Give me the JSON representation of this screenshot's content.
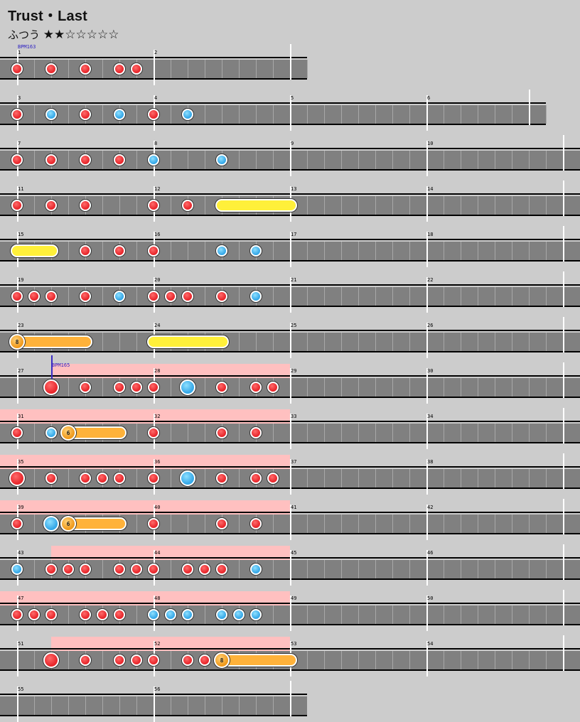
{
  "song": {
    "title": "Trust・Last",
    "difficulty_label": "ふつう",
    "stars_filled": 2,
    "stars_total": 7,
    "star_filled_glyph": "★",
    "star_empty_glyph": "☆"
  },
  "colors": {
    "background": "#cccccc",
    "lane": "#808080",
    "gogo_highlight": "#ffc0c0",
    "don": "#e8272c",
    "ka": "#36a8e8",
    "roll": "#fff03a",
    "balloon": "#ffb23a",
    "bpm_marker": "#2b1ec2"
  },
  "bpm_changes": [
    {
      "measure": 1,
      "beat": 0,
      "label": "BPM163"
    },
    {
      "measure": 27,
      "beat": 2,
      "label": "BPM165"
    }
  ],
  "rows": [
    {
      "measures": [
        1,
        2
      ],
      "gogo": []
    },
    {
      "measures": [
        3,
        4,
        5,
        6
      ],
      "gogo": []
    },
    {
      "measures": [
        7,
        8,
        9,
        10
      ],
      "gogo": []
    },
    {
      "measures": [
        11,
        12,
        13,
        14
      ],
      "gogo": []
    },
    {
      "measures": [
        15,
        16,
        17,
        18
      ],
      "gogo": []
    },
    {
      "measures": [
        19,
        20,
        21,
        22
      ],
      "gogo": []
    },
    {
      "measures": [
        23,
        24,
        25,
        26
      ],
      "gogo": []
    },
    {
      "measures": [
        27,
        28,
        29,
        30
      ],
      "gogo": [
        [
          2,
          16
        ]
      ]
    },
    {
      "measures": [
        31,
        32,
        33,
        34
      ],
      "gogo": [
        [
          0,
          16
        ]
      ]
    },
    {
      "measures": [
        35,
        36,
        37,
        38
      ],
      "gogo": [
        [
          0,
          16
        ]
      ]
    },
    {
      "measures": [
        39,
        40,
        41,
        42
      ],
      "gogo": [
        [
          0,
          16
        ]
      ]
    },
    {
      "measures": [
        43,
        44,
        45,
        46
      ],
      "gogo": [
        [
          2,
          16
        ]
      ]
    },
    {
      "measures": [
        47,
        48,
        49,
        50
      ],
      "gogo": [
        [
          0,
          16
        ]
      ]
    },
    {
      "measures": [
        51,
        52,
        53,
        54
      ],
      "gogo": [
        [
          2,
          16
        ]
      ]
    },
    {
      "measures": [
        55,
        56
      ],
      "gogo": []
    }
  ],
  "notes": [
    {
      "row": 0,
      "notes": [
        [
          "d",
          0
        ],
        [
          "d",
          2
        ],
        [
          "d",
          4
        ],
        [
          "d",
          6
        ],
        [
          "d",
          7
        ]
      ]
    },
    {
      "row": 1,
      "notes": [
        [
          "d",
          0
        ],
        [
          "k",
          2
        ],
        [
          "d",
          4
        ],
        [
          "k",
          6
        ],
        [
          "d",
          8
        ],
        [
          "k",
          10
        ]
      ]
    },
    {
      "row": 2,
      "notes": [
        [
          "d",
          0
        ],
        [
          "d",
          2
        ],
        [
          "d",
          4
        ],
        [
          "d",
          6
        ],
        [
          "k",
          8
        ],
        [
          "k",
          12
        ]
      ]
    },
    {
      "row": 3,
      "notes": [
        [
          "d",
          0
        ],
        [
          "d",
          2
        ],
        [
          "d",
          4
        ],
        [
          "d",
          8
        ],
        [
          "d",
          10
        ]
      ]
    },
    {
      "row": 4,
      "notes": [
        [
          "d",
          4
        ],
        [
          "d",
          6
        ],
        [
          "d",
          8
        ],
        [
          "k",
          12
        ],
        [
          "k",
          14
        ]
      ]
    },
    {
      "row": 5,
      "notes": [
        [
          "d",
          0
        ],
        [
          "d",
          1
        ],
        [
          "d",
          2
        ],
        [
          "d",
          4
        ],
        [
          "k",
          6
        ],
        [
          "d",
          8
        ],
        [
          "d",
          9
        ],
        [
          "d",
          10
        ],
        [
          "d",
          12
        ],
        [
          "k",
          14
        ]
      ]
    },
    {
      "row": 6,
      "notes": []
    },
    {
      "row": 7,
      "notes": [
        [
          "D",
          2
        ],
        [
          "d",
          4
        ],
        [
          "d",
          6
        ],
        [
          "d",
          7
        ],
        [
          "d",
          8
        ],
        [
          "K",
          10
        ],
        [
          "d",
          12
        ],
        [
          "d",
          14
        ],
        [
          "d",
          15
        ]
      ]
    },
    {
      "row": 8,
      "notes": [
        [
          "d",
          0
        ],
        [
          "k",
          2
        ],
        [
          "d",
          8
        ],
        [
          "d",
          12
        ],
        [
          "d",
          14
        ]
      ]
    },
    {
      "row": 9,
      "notes": [
        [
          "D",
          0
        ],
        [
          "d",
          2
        ],
        [
          "d",
          4
        ],
        [
          "d",
          5
        ],
        [
          "d",
          6
        ],
        [
          "d",
          8
        ],
        [
          "K",
          10
        ],
        [
          "d",
          12
        ],
        [
          "d",
          14
        ],
        [
          "d",
          15
        ]
      ]
    },
    {
      "row": 10,
      "notes": [
        [
          "d",
          0
        ],
        [
          "K",
          2
        ],
        [
          "d",
          8
        ],
        [
          "d",
          12
        ],
        [
          "d",
          14
        ]
      ]
    },
    {
      "row": 11,
      "notes": [
        [
          "k",
          0
        ],
        [
          "d",
          2
        ],
        [
          "d",
          3
        ],
        [
          "d",
          4
        ],
        [
          "d",
          6
        ],
        [
          "d",
          7
        ],
        [
          "d",
          8
        ],
        [
          "d",
          10
        ],
        [
          "d",
          11
        ],
        [
          "d",
          12
        ],
        [
          "k",
          14
        ]
      ]
    },
    {
      "row": 12,
      "notes": [
        [
          "d",
          0
        ],
        [
          "d",
          1
        ],
        [
          "d",
          2
        ],
        [
          "d",
          4
        ],
        [
          "d",
          5
        ],
        [
          "d",
          6
        ],
        [
          "k",
          8
        ],
        [
          "k",
          9
        ],
        [
          "k",
          10
        ],
        [
          "k",
          12
        ],
        [
          "k",
          13
        ],
        [
          "k",
          14
        ]
      ]
    },
    {
      "row": 13,
      "notes": [
        [
          "D",
          2
        ],
        [
          "d",
          4
        ],
        [
          "d",
          6
        ],
        [
          "d",
          7
        ],
        [
          "d",
          8
        ],
        [
          "d",
          10
        ],
        [
          "d",
          11
        ]
      ]
    },
    {
      "row": 14,
      "notes": []
    }
  ],
  "rolls": [
    {
      "row": 3,
      "start": 12,
      "end": 16,
      "kind": "roll"
    },
    {
      "row": 4,
      "start": 0,
      "end": 2,
      "kind": "roll"
    },
    {
      "row": 6,
      "start": 0,
      "end": 4,
      "kind": "balloon",
      "count": "8"
    },
    {
      "row": 6,
      "start": 8,
      "end": 12,
      "kind": "roll"
    },
    {
      "row": 8,
      "start": 3,
      "end": 6,
      "kind": "balloon",
      "count": "6"
    },
    {
      "row": 10,
      "start": 3,
      "end": 6,
      "kind": "balloon",
      "count": "6"
    },
    {
      "row": 13,
      "start": 12,
      "end": 16,
      "kind": "balloon",
      "count": "8"
    }
  ]
}
